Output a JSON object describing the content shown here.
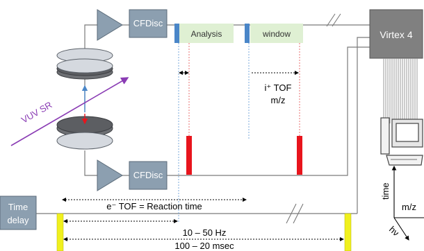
{
  "labels": {
    "cfdisc_top": "CFDisc",
    "cfdisc_bottom": "CFDisc",
    "analysis": "Analysis",
    "window": "window",
    "virtex": "Virtex 4",
    "vuv": "VUV SR",
    "ion_tof_line1": "i⁺ TOF",
    "ion_tof_line2": "m/z",
    "electron_tof": "e⁻ TOF = Reaction time",
    "time_delay_line1": "Time",
    "time_delay_line2": "delay",
    "frequency": "10 – 50 Hz",
    "period": "100 – 20 msec",
    "axis_time": "time",
    "axis_mz": "m/z",
    "axis_hv": "hν"
  },
  "colors": {
    "discriminator_fill": "#8c9fb0",
    "window_fill": "#dff0d3",
    "start_pulse": "#4a86c8",
    "stop_pulse": "#e8141c",
    "trigger_pulse": "#f0f01e",
    "beam": "#8a3cb4",
    "virtex_fill": "#808080",
    "line": "#7a7a7a"
  }
}
